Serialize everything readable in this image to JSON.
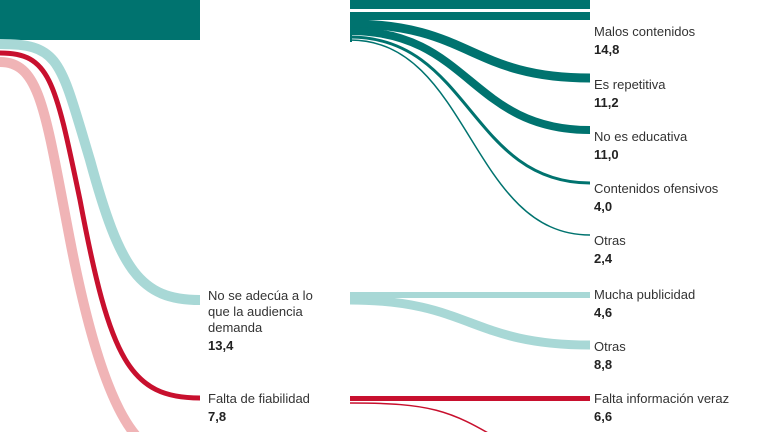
{
  "left_nodes": [
    {
      "label": [
        "No se adecúa a lo",
        "que la audiencia",
        "demanda"
      ],
      "value": "13,4"
    },
    {
      "label": [
        "Falta de fiabilidad"
      ],
      "value": "7,8"
    }
  ],
  "right_nodes": [
    {
      "label": "Malos contenidos",
      "value": "14,8"
    },
    {
      "label": "Es repetitiva",
      "value": "11,2"
    },
    {
      "label": "No es educativa",
      "value": "11,0"
    },
    {
      "label": "Contenidos ofensivos",
      "value": "4,0"
    },
    {
      "label": "Otras",
      "value": "2,4"
    },
    {
      "label": "Mucha publicidad",
      "value": "4,6"
    },
    {
      "label": "Otras",
      "value": "8,8"
    },
    {
      "label": "Falta información veraz",
      "value": "6,6"
    }
  ]
}
